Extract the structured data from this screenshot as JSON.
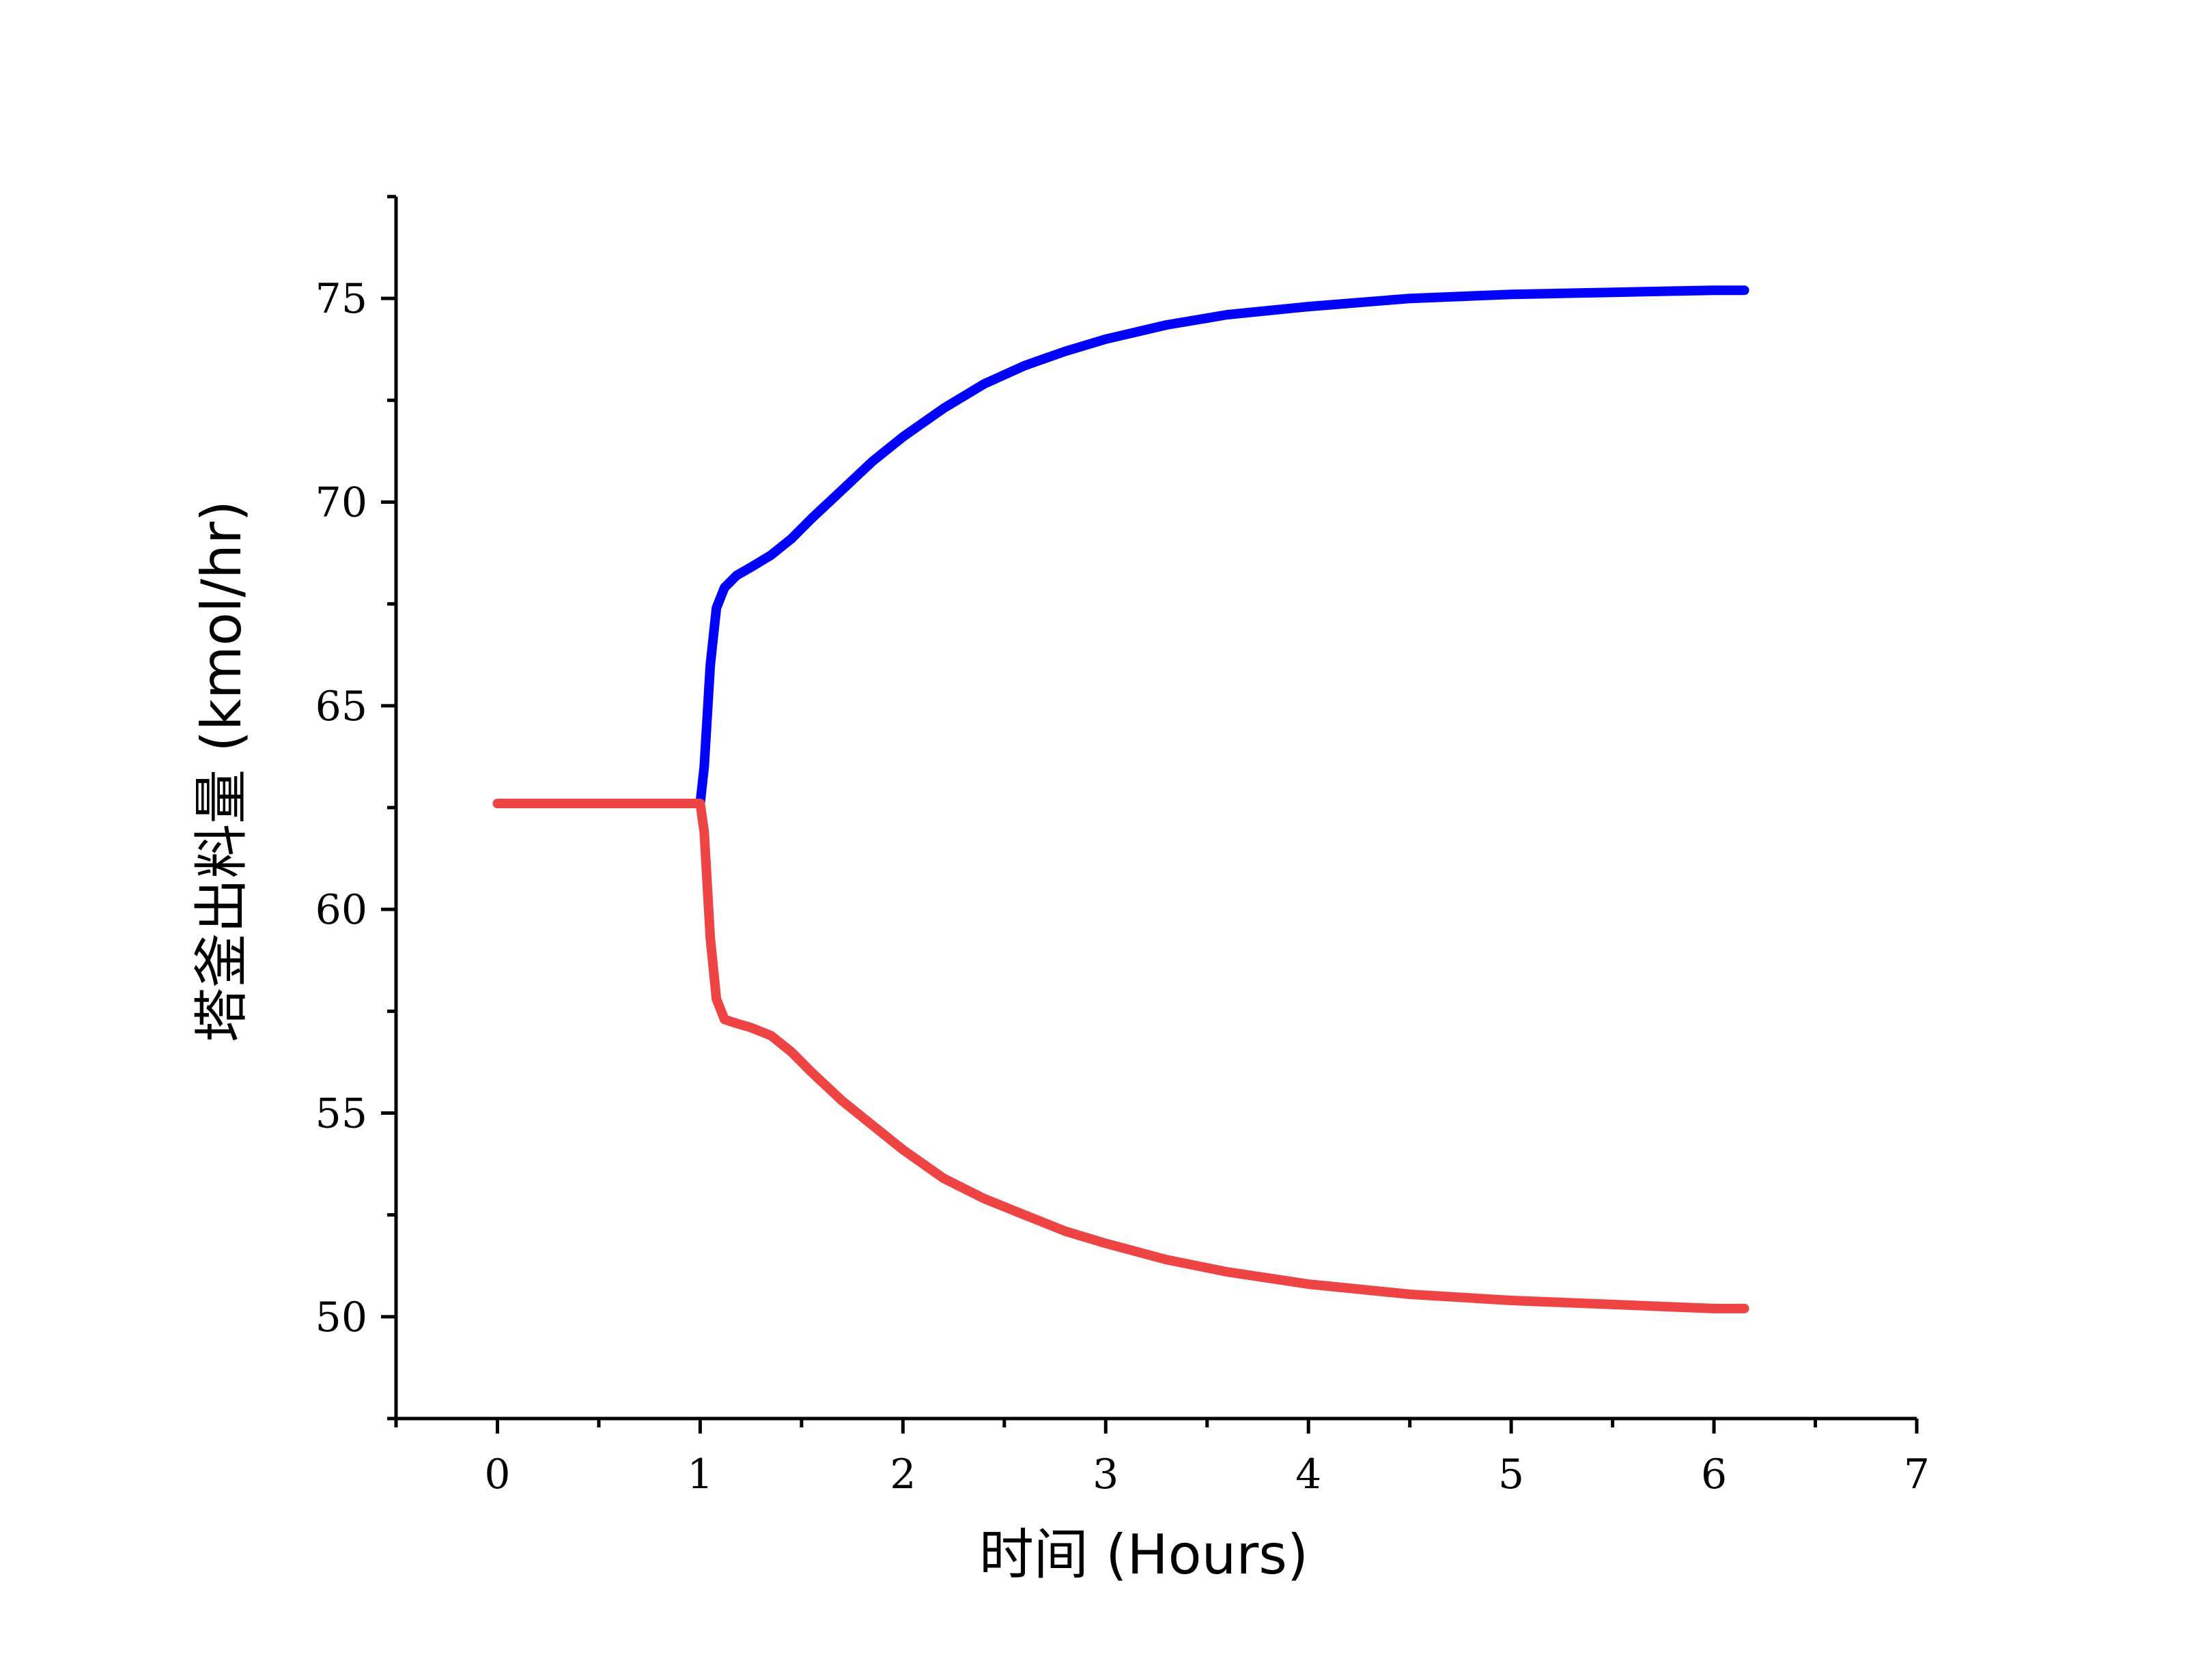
{
  "chart_data": {
    "type": "line",
    "title": "",
    "xlabel": "时间 (Hours)",
    "ylabel": "塔釜出料量 (kmol/hr)",
    "xlim": [
      -0.5,
      7
    ],
    "ylim": [
      47.5,
      77.5
    ],
    "x_ticks": [
      0,
      1,
      2,
      3,
      4,
      5,
      6,
      7
    ],
    "y_ticks": [
      50,
      55,
      60,
      65,
      70,
      75
    ],
    "x_tick_labels": [
      "0",
      "1",
      "2",
      "3",
      "4",
      "5",
      "6",
      "7"
    ],
    "y_tick_labels": [
      "50",
      "55",
      "60",
      "65",
      "70",
      "75"
    ],
    "grid": false,
    "legend": "none",
    "series": [
      {
        "color": "#0000ff",
        "x": [
          1.0,
          1.02,
          1.05,
          1.08,
          1.12,
          1.18,
          1.25,
          1.35,
          1.45,
          1.55,
          1.7,
          1.85,
          2.0,
          2.2,
          2.4,
          2.6,
          2.8,
          3.0,
          3.3,
          3.6,
          4.0,
          4.5,
          5.0,
          5.5,
          6.0,
          6.15
        ],
        "y": [
          62.6,
          63.5,
          66.0,
          67.4,
          67.9,
          68.2,
          68.4,
          68.7,
          69.1,
          69.6,
          70.3,
          71.0,
          71.6,
          72.3,
          72.9,
          73.35,
          73.7,
          74.0,
          74.35,
          74.6,
          74.8,
          75.0,
          75.1,
          75.15,
          75.2,
          75.2
        ]
      },
      {
        "color": "#ef4444",
        "x": [
          0.0,
          0.5,
          0.95,
          1.0,
          1.02,
          1.05,
          1.08,
          1.12,
          1.18,
          1.25,
          1.35,
          1.45,
          1.55,
          1.7,
          1.85,
          2.0,
          2.2,
          2.4,
          2.6,
          2.8,
          3.0,
          3.3,
          3.6,
          4.0,
          4.5,
          5.0,
          5.5,
          6.0,
          6.15
        ],
        "y": [
          62.6,
          62.6,
          62.6,
          62.6,
          61.9,
          59.3,
          57.8,
          57.3,
          57.2,
          57.1,
          56.9,
          56.5,
          56.0,
          55.3,
          54.7,
          54.1,
          53.4,
          52.9,
          52.5,
          52.1,
          51.8,
          51.4,
          51.1,
          50.8,
          50.55,
          50.4,
          50.3,
          50.2,
          50.2
        ]
      }
    ]
  }
}
